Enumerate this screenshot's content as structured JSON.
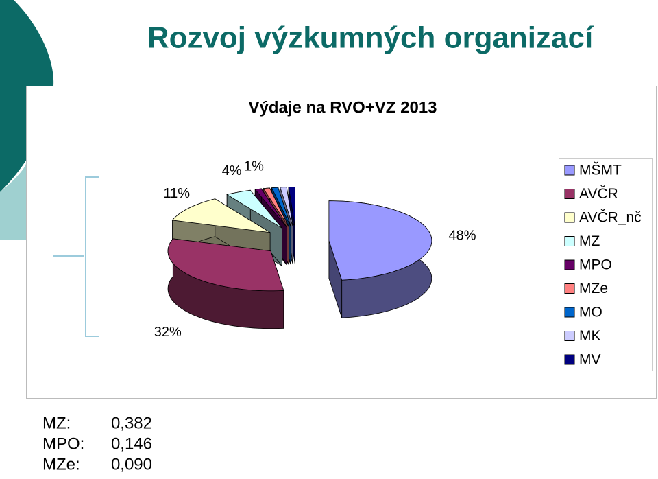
{
  "slide_title": "Rozvoj výzkumných organizací",
  "chart_data": {
    "type": "pie3d",
    "title": "Výdaje na RVO+VZ 2013",
    "categories": [
      "MŠMT",
      "AVČR",
      "AVČR_nč",
      "MZ",
      "MPO",
      "MZe",
      "MO",
      "MK",
      "MV"
    ],
    "values": [
      48,
      32,
      11,
      4,
      1,
      1,
      1,
      1,
      1
    ],
    "value_labels": [
      "48%",
      "32%",
      "11%",
      "4%",
      "1%",
      null,
      null,
      null,
      null
    ],
    "colors": [
      "#9999ff",
      "#993366",
      "#ffffcc",
      "#ccffff",
      "#660066",
      "#ff8080",
      "#0066cc",
      "#ccccff",
      "#000080"
    ],
    "legend": "right"
  },
  "notes": [
    {
      "label": "MZ:",
      "value": "0,382"
    },
    {
      "label": "MPO:",
      "value": "0,146"
    },
    {
      "label": "MZe:",
      "value": "0,090"
    }
  ]
}
